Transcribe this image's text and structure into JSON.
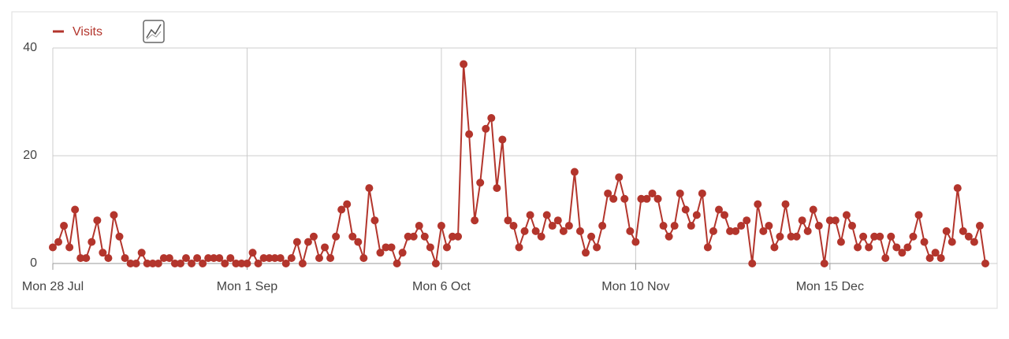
{
  "chart_data": {
    "type": "line",
    "categories": [
      "Mon 28 Jul",
      null,
      null,
      null,
      null,
      null,
      null,
      null,
      null,
      null,
      null,
      null,
      null,
      null,
      null,
      null,
      null,
      null,
      null,
      null,
      null,
      null,
      null,
      null,
      null,
      null,
      null,
      null,
      null,
      null,
      null,
      null,
      null,
      null,
      null,
      "Mon 1 Sep",
      null,
      null,
      null,
      null,
      null,
      null,
      null,
      null,
      null,
      null,
      null,
      null,
      null,
      null,
      null,
      null,
      null,
      null,
      null,
      null,
      null,
      null,
      null,
      null,
      null,
      null,
      null,
      null,
      null,
      null,
      null,
      null,
      null,
      null,
      "Mon 6 Oct",
      null,
      null,
      null,
      null,
      null,
      null,
      null,
      null,
      null,
      null,
      null,
      null,
      null,
      null,
      null,
      null,
      null,
      null,
      null,
      null,
      null,
      null,
      null,
      null,
      null,
      null,
      null,
      null,
      null,
      null,
      null,
      null,
      null,
      null,
      "Mon 10 Nov",
      null,
      null,
      null,
      null,
      null,
      null,
      null,
      null,
      null,
      null,
      null,
      null,
      null,
      null,
      null,
      null,
      null,
      null,
      null,
      null,
      null,
      null,
      null,
      null,
      null,
      null,
      null,
      null,
      null,
      null,
      null,
      null,
      null,
      null,
      "Mon 15 Dec",
      null,
      null,
      null,
      null,
      null,
      null,
      null,
      null,
      null,
      null,
      null,
      null,
      null,
      null,
      null,
      null,
      null,
      null,
      null,
      null,
      null,
      null,
      null,
      null,
      null,
      null,
      null,
      null
    ],
    "series": [
      {
        "name": "Visits",
        "color": "#b3352c",
        "values": [
          3,
          4,
          7,
          3,
          10,
          1,
          1,
          4,
          8,
          2,
          1,
          9,
          5,
          1,
          0,
          0,
          2,
          0,
          0,
          0,
          1,
          1,
          0,
          0,
          1,
          0,
          1,
          0,
          1,
          1,
          1,
          0,
          1,
          0,
          0,
          0,
          2,
          0,
          1,
          1,
          1,
          1,
          0,
          1,
          4,
          0,
          4,
          5,
          1,
          3,
          1,
          5,
          10,
          11,
          5,
          4,
          1,
          14,
          8,
          2,
          3,
          3,
          0,
          2,
          5,
          5,
          7,
          5,
          3,
          0,
          7,
          3,
          5,
          5,
          37,
          24,
          8,
          15,
          25,
          27,
          14,
          23,
          8,
          7,
          3,
          6,
          9,
          6,
          5,
          9,
          7,
          8,
          6,
          7,
          17,
          6,
          2,
          5,
          3,
          7,
          13,
          12,
          16,
          12,
          6,
          4,
          12,
          12,
          13,
          12,
          7,
          5,
          7,
          13,
          10,
          7,
          9,
          13,
          3,
          6,
          10,
          9,
          6,
          6,
          7,
          8,
          0,
          11,
          6,
          7,
          3,
          5,
          11,
          5,
          5,
          8,
          6,
          10,
          7,
          0,
          8,
          8,
          4,
          9,
          7,
          3,
          5,
          3,
          5,
          5,
          1,
          5,
          3,
          2,
          3,
          5,
          9,
          4,
          1,
          2,
          1,
          6,
          4,
          14,
          6,
          5,
          4,
          7,
          0
        ]
      }
    ],
    "ylim": [
      0,
      40
    ],
    "yticks": [
      0,
      20,
      40
    ],
    "grid": true
  }
}
